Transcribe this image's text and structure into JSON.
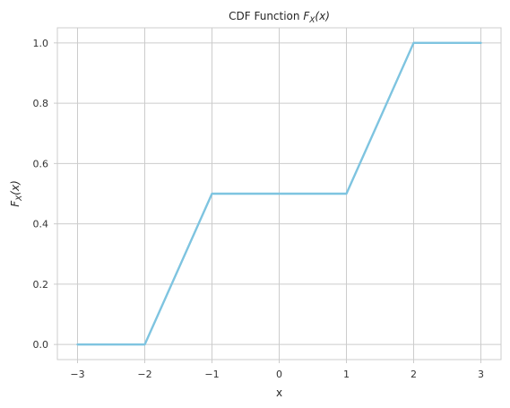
{
  "chart_data": {
    "type": "line",
    "title_plain": "CDF Function ",
    "title_math_base": "F",
    "title_math_sub": "X",
    "title_math_arg": "(x)",
    "xlabel": "x",
    "ylabel_math_base": "F",
    "ylabel_math_sub": "X",
    "ylabel_math_arg": "(x)",
    "xlim": [
      -3.3,
      3.3
    ],
    "ylim": [
      -0.05,
      1.05
    ],
    "xticks": [
      -3,
      -2,
      -1,
      0,
      1,
      2,
      3
    ],
    "xtick_labels": [
      "−3",
      "−2",
      "−1",
      "0",
      "1",
      "2",
      "3"
    ],
    "yticks": [
      0.0,
      0.2,
      0.4,
      0.6,
      0.8,
      1.0
    ],
    "ytick_labels": [
      "0.0",
      "0.2",
      "0.4",
      "0.6",
      "0.8",
      "1.0"
    ],
    "grid": true,
    "series": [
      {
        "color": "#7ec4e0",
        "x": [
          -3,
          -2,
          -1,
          0,
          1,
          2,
          3
        ],
        "y": [
          0.0,
          0.0,
          0.5,
          0.5,
          0.5,
          1.0,
          1.0
        ]
      }
    ]
  }
}
